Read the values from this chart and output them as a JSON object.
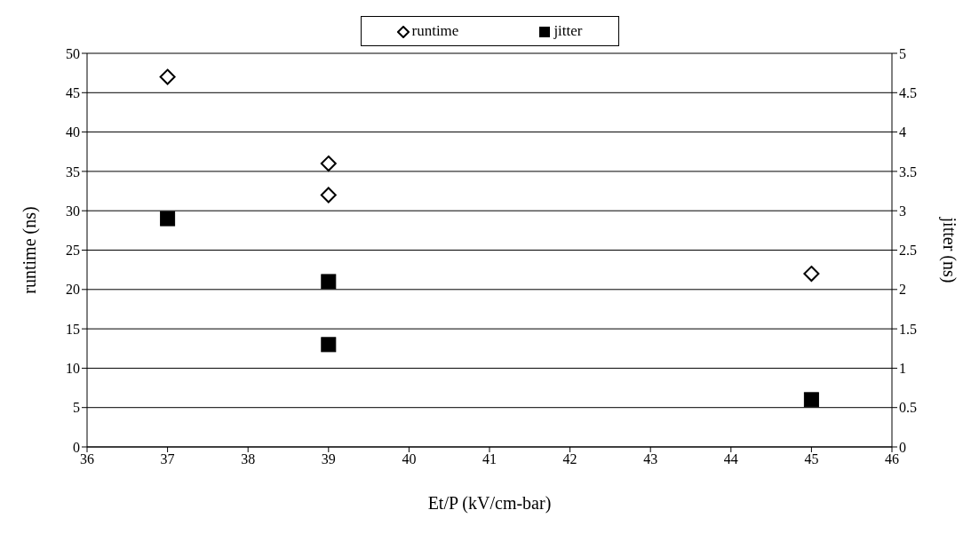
{
  "chart_data": {
    "type": "scatter",
    "xlabel": "Et/P (kV/cm-bar)",
    "ylabel": "runtime (ns)",
    "y2label": "jitter (ns)",
    "xlim": [
      36,
      46
    ],
    "xticks": [
      36,
      37,
      38,
      39,
      40,
      41,
      42,
      43,
      44,
      45,
      46
    ],
    "ylim": [
      0,
      50
    ],
    "yticks": [
      0,
      5,
      10,
      15,
      20,
      25,
      30,
      35,
      40,
      45,
      50
    ],
    "y2lim": [
      0,
      5
    ],
    "y2ticks": [
      0,
      0.5,
      1,
      1.5,
      2,
      2.5,
      3,
      3.5,
      4,
      4.5,
      5
    ],
    "grid": "y",
    "legend": "top",
    "series": [
      {
        "name": "runtime",
        "color": "#000000",
        "marker": "diamond",
        "x": [
          37,
          39,
          39,
          45
        ],
        "values": [
          47,
          36,
          32,
          22
        ]
      },
      {
        "name": "jitter",
        "color": "#000000",
        "marker": "square",
        "axis": "y2",
        "x": [
          37,
          39,
          39,
          45
        ],
        "values": [
          2.9,
          2.1,
          1.3,
          0.6
        ]
      }
    ]
  }
}
